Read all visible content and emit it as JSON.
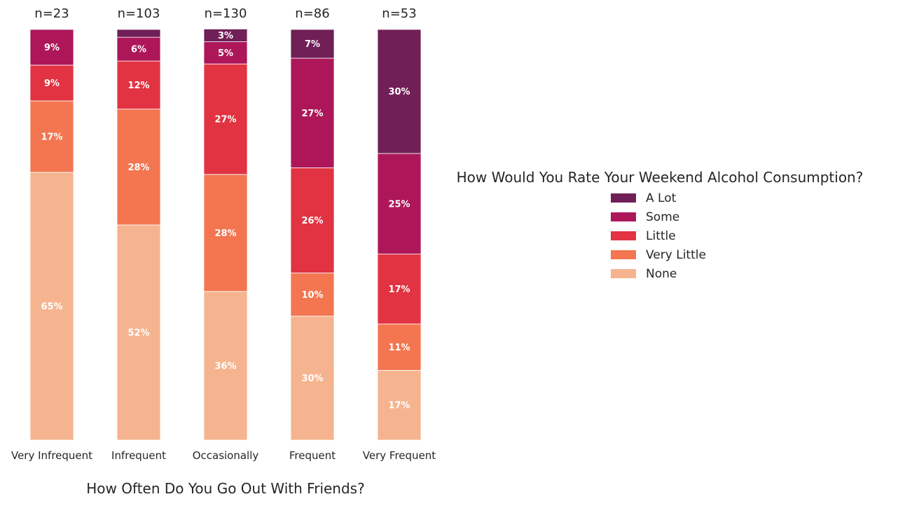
{
  "chart_data": {
    "type": "bar",
    "stacked": true,
    "normalized": true,
    "xlabel": "How Often Do You Go Out With Friends?",
    "ylabel": "",
    "ylim": [
      0,
      1
    ],
    "grid": false,
    "categories": [
      "Very Infrequent",
      "Infrequent",
      "Occasionally",
      "Frequent",
      "Very Frequent"
    ],
    "counts": [
      "n=23",
      "n=103",
      "n=130",
      "n=86",
      "n=53"
    ],
    "legend": {
      "title": "How Would You Rate Your Weekend Alcohol Consumption?",
      "placement": "right",
      "entries": [
        "A Lot",
        "Some",
        "Little",
        "Very Little",
        "None"
      ]
    },
    "series": [
      {
        "name": "None",
        "color": "#f5b48f",
        "values": [
          0.652,
          0.524,
          0.362,
          0.302,
          0.17
        ],
        "labels": [
          "65%",
          "52%",
          "36%",
          "30%",
          "17%"
        ]
      },
      {
        "name": "Very Little",
        "color": "#f37651",
        "values": [
          0.174,
          0.282,
          0.285,
          0.105,
          0.113
        ],
        "labels": [
          "17%",
          "28%",
          "28%",
          "10%",
          "11%"
        ]
      },
      {
        "name": "Little",
        "color": "#e13342",
        "values": [
          0.087,
          0.117,
          0.269,
          0.256,
          0.17
        ],
        "labels": [
          "9%",
          "12%",
          "27%",
          "26%",
          "17%"
        ]
      },
      {
        "name": "Some",
        "color": "#ad1759",
        "values": [
          0.087,
          0.058,
          0.054,
          0.267,
          0.245
        ],
        "labels": [
          "9%",
          "6%",
          "5%",
          "27%",
          "25%"
        ]
      },
      {
        "name": "A Lot",
        "color": "#701f57",
        "values": [
          0,
          0.019,
          0.031,
          0.07,
          0.302
        ],
        "labels": [
          "",
          "",
          "3%",
          "7%",
          "30%"
        ]
      }
    ]
  }
}
